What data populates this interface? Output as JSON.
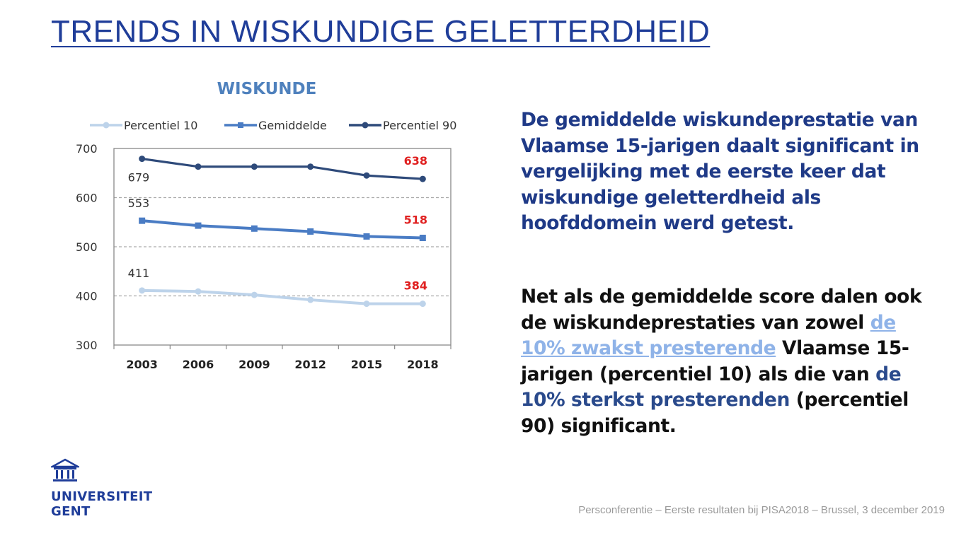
{
  "page_title": "TRENDS IN WISKUNDIGE GELETTERDHEID",
  "paragraph1": "De gemiddelde wiskundeprestatie van Vlaamse 15-jarigen daalt significant in vergelijking met de eerste keer dat wiskundige geletterdheid als hoofddomein werd getest.",
  "paragraph2": {
    "part1": "Net als de gemiddelde score dalen ook de wiskundeprestaties van zowel ",
    "link1": "de 10% zwakst presterende",
    "part2": " Vlaamse 15-jarigen (percentiel 10) als die van ",
    "highlight2": "de 10% sterkst presterenden",
    "part3": " (percentiel 90) significant."
  },
  "logo": {
    "line1": "UNIVERSITEIT",
    "line2": "GENT",
    "icon": "university-building-icon"
  },
  "footer": "Persconferentie – Eerste resultaten bij PISA2018 – Brussel, 3 december 2019",
  "colors": {
    "p10": "#bdd3ea",
    "mean": "#4a7cc4",
    "p90": "#2e4a7a",
    "highlight": "#e02020",
    "title": "#1f3d99"
  },
  "chart_data": {
    "type": "line",
    "title": "WISKUNDE",
    "categories": [
      "2003",
      "2006",
      "2009",
      "2012",
      "2015",
      "2018"
    ],
    "ylim": [
      300,
      700
    ],
    "yticks": [
      "700",
      "600",
      "500",
      "400",
      "300"
    ],
    "grid": true,
    "legend_position": "top",
    "series": [
      {
        "name": "Percentiel 10",
        "values": [
          411,
          409,
          402,
          392,
          384,
          384
        ],
        "first_label": "411",
        "last_label": "384"
      },
      {
        "name": "Gemiddelde",
        "values": [
          553,
          543,
          537,
          531,
          521,
          518
        ],
        "first_label": "553",
        "last_label": "518"
      },
      {
        "name": "Percentiel 90",
        "values": [
          679,
          663,
          663,
          663,
          645,
          638
        ],
        "first_label": "679",
        "last_label": "638"
      }
    ]
  }
}
